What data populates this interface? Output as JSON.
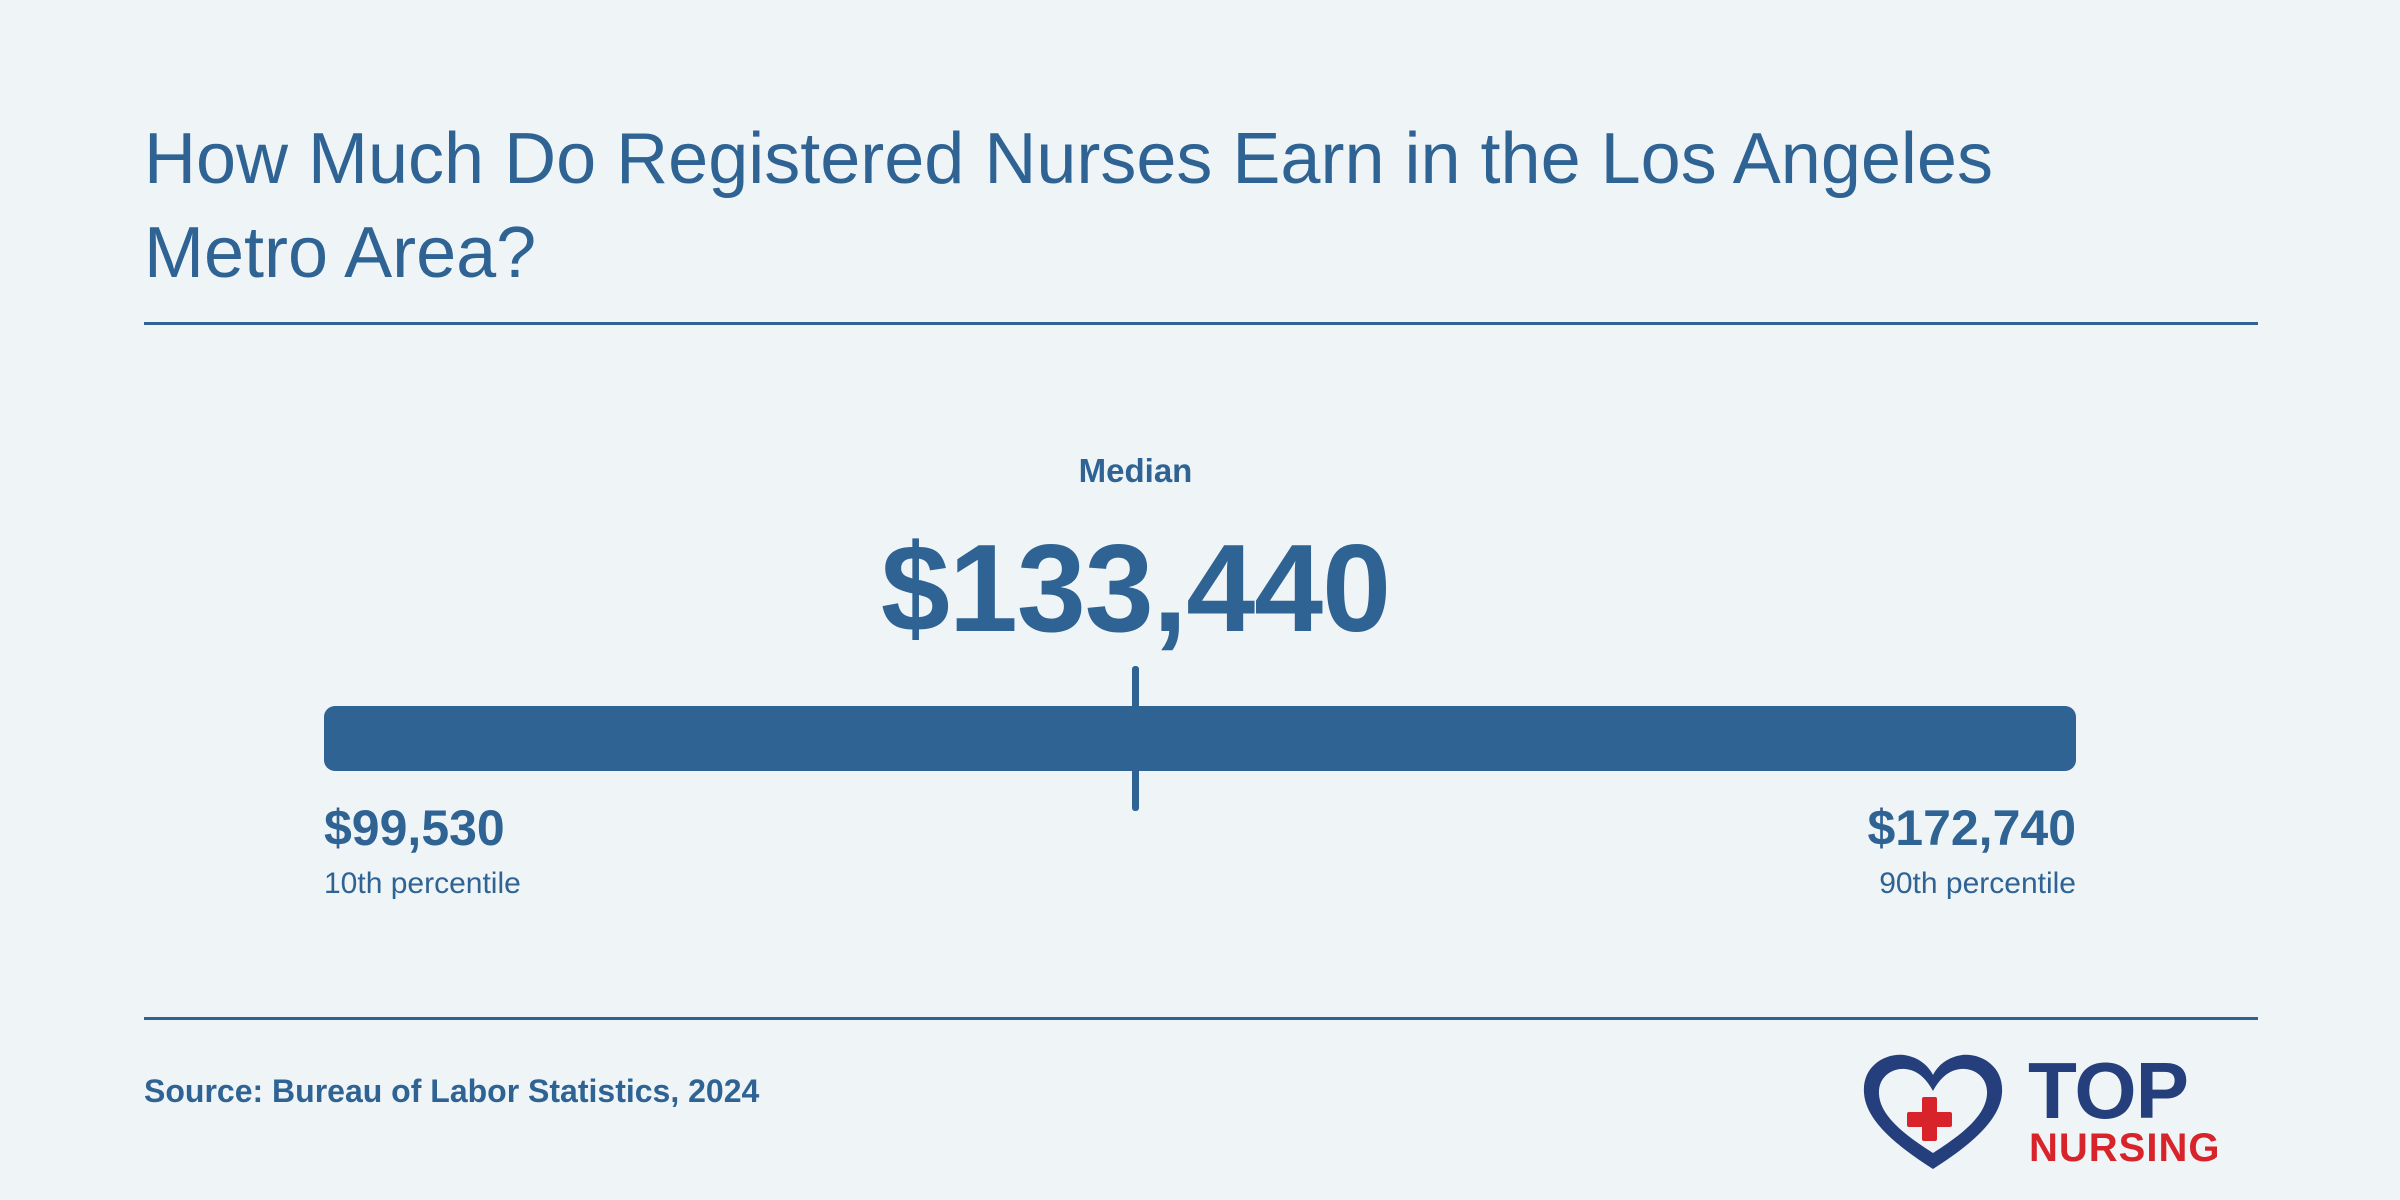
{
  "header": {
    "title": "How Much Do Registered Nurses Earn in the Los Angeles Metro Area?"
  },
  "chart_data": {
    "type": "range",
    "median_label": "Median",
    "median_value": 133440,
    "median_display": "$133,440",
    "min_value": 99530,
    "min_display": "$99,530",
    "min_label": "10th percentile",
    "max_value": 172740,
    "max_display": "$172,740",
    "max_label": "90th percentile"
  },
  "footer": {
    "source": "Source: Bureau of Labor Statistics, 2024"
  },
  "logo": {
    "line1": "TOP",
    "line2": "NURSING"
  },
  "colors": {
    "background": "#eff4f7",
    "primary": "#2e6393",
    "logo_blue": "#253f7c",
    "logo_red": "#d8232a"
  }
}
